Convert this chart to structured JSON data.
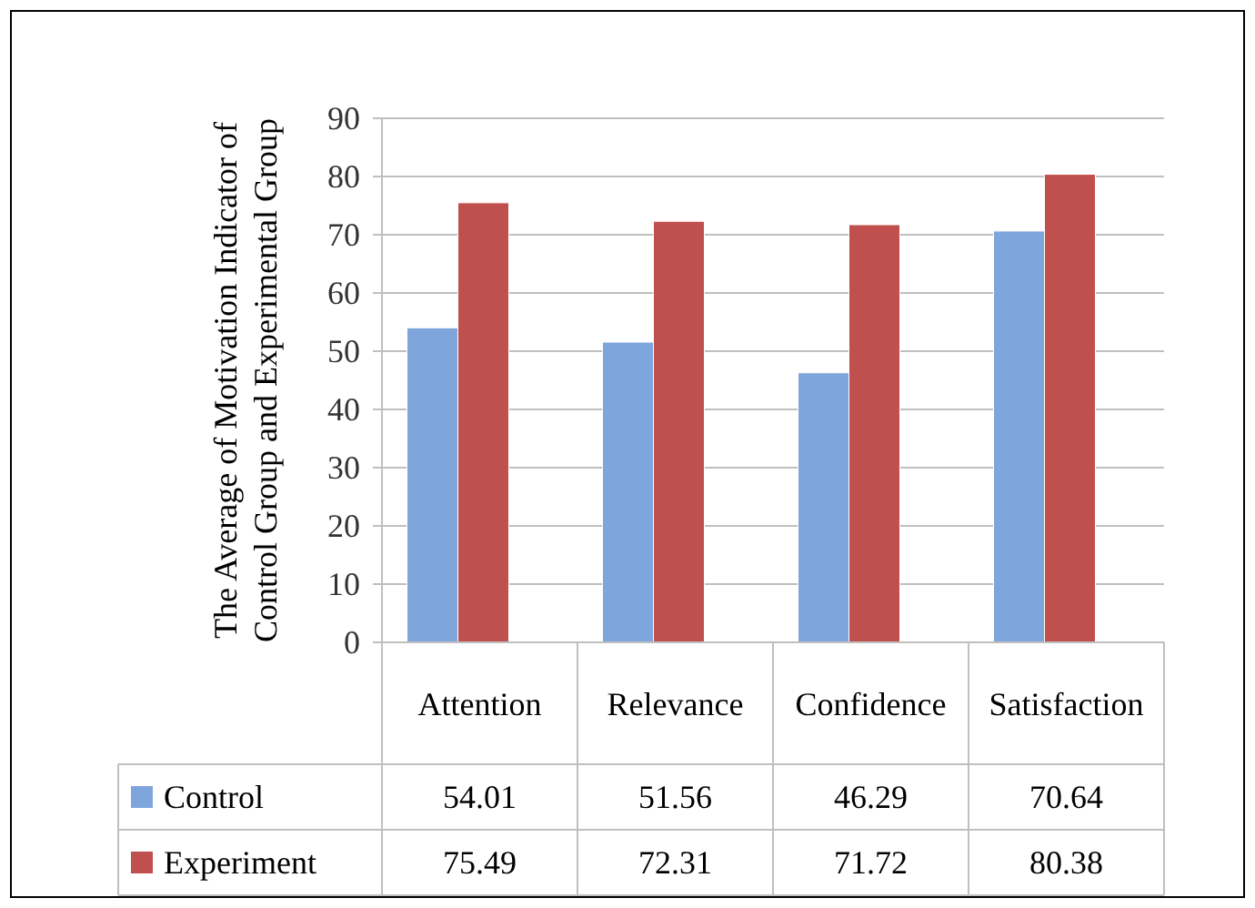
{
  "chart_data": {
    "type": "bar",
    "ylabel": "The Average of Motivation Indicator of Control Group and Experimental Group",
    "categories": [
      "Attention",
      "Relevance",
      "Confidence",
      "Satisfaction"
    ],
    "series": [
      {
        "name": "Control",
        "color": "#7ea6dc",
        "values": [
          54.01,
          51.56,
          46.29,
          70.64
        ]
      },
      {
        "name": "Experiment",
        "color": "#c0504d",
        "values": [
          75.49,
          72.31,
          71.72,
          80.38
        ]
      }
    ],
    "ylim": [
      0,
      90
    ],
    "yticks": [
      0,
      10,
      20,
      30,
      40,
      50,
      60,
      70,
      80,
      90
    ],
    "grid": "y",
    "legend": "bottom",
    "data_labels": true
  }
}
